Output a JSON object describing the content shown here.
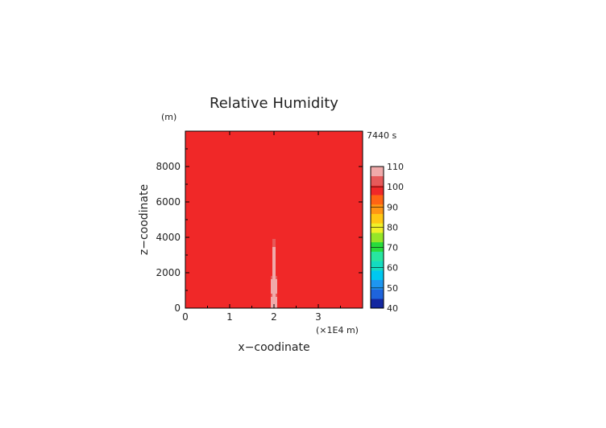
{
  "chart_data": {
    "type": "heatmap",
    "title": "Relative Humidity",
    "time_label": "7440 s",
    "y_unit": "(m)",
    "xlabel": "x−coodinate",
    "ylabel": "z−coodinate",
    "x_unit": "(×1E4 m)",
    "xlim": [
      0,
      4
    ],
    "ylim": [
      0,
      10000
    ],
    "x_ticks": [
      "0",
      "1",
      "2",
      "3"
    ],
    "x_tick_values": [
      0,
      1,
      2,
      3
    ],
    "y_ticks": [
      "0",
      "2000",
      "4000",
      "6000",
      "8000"
    ],
    "y_tick_values": [
      0,
      2000,
      4000,
      6000,
      8000
    ],
    "colorbar": {
      "labels": [
        "40",
        "50",
        "60",
        "70",
        "80",
        "90",
        "100",
        "110"
      ],
      "levels": [
        40,
        45,
        50,
        55,
        60,
        65,
        70,
        75,
        80,
        85,
        90,
        95,
        100,
        105,
        110
      ],
      "colors": [
        "#1428a0",
        "#1e64dc",
        "#1e96f0",
        "#00c8f0",
        "#14dcc0",
        "#28e6a0",
        "#28dc3c",
        "#96e628",
        "#f0f028",
        "#ffc814",
        "#ff9614",
        "#ff6414",
        "#f02828",
        "#e65a5a",
        "#f0aaaa"
      ]
    }
  }
}
